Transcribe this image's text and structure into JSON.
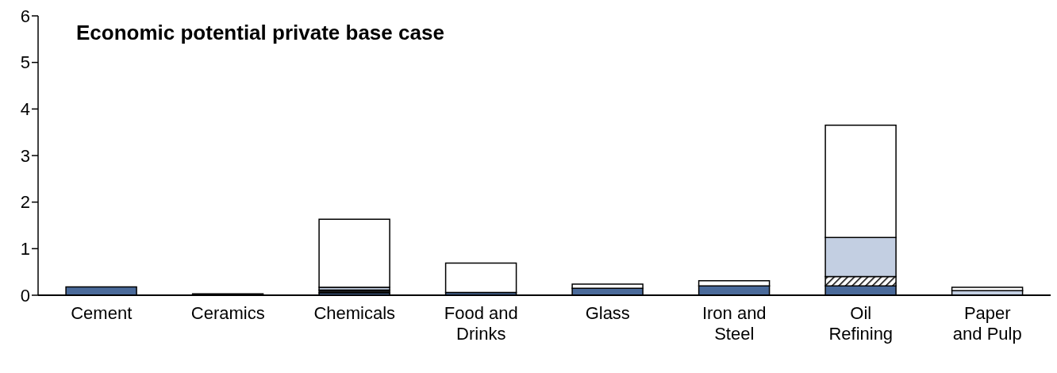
{
  "chart_data": {
    "type": "bar",
    "title": "Economic potential private base case",
    "categories": [
      "Cement",
      "Ceramics",
      "Chemicals",
      "Food and Drinks",
      "Glass",
      "Iron and Steel",
      "Oil Refining",
      "Paper and Pulp"
    ],
    "stacked": true,
    "ylim": [
      0,
      6
    ],
    "yticks": [
      0,
      1,
      2,
      3,
      4,
      5,
      6
    ],
    "series": [
      {
        "color": "#4a6a9a",
        "values": [
          0.18,
          0.03,
          0.05,
          0.06,
          0.15,
          0.2,
          0.2,
          null
        ]
      },
      {
        "color": "#1a1a1a",
        "values": [
          null,
          null,
          0.06,
          null,
          null,
          null,
          null,
          null
        ]
      },
      {
        "color": "#000000",
        "values": [
          null,
          null,
          null,
          null,
          null,
          null,
          0.2,
          null
        ]
      },
      {
        "color": "#c3cfe2",
        "values": [
          null,
          null,
          0.06,
          null,
          null,
          null,
          0.84,
          0.1
        ]
      },
      {
        "color": "#ffffff",
        "values": [
          null,
          null,
          1.46,
          0.63,
          0.09,
          0.11,
          2.41,
          0.07
        ]
      }
    ]
  }
}
